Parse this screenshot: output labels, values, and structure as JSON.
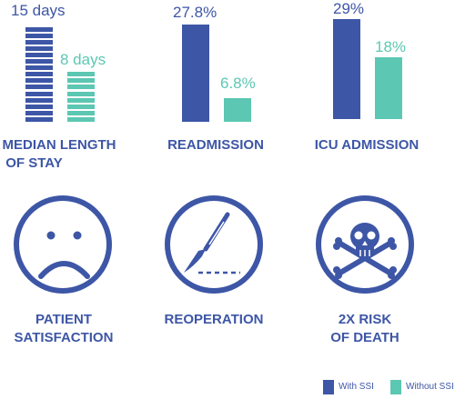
{
  "colors": {
    "with_ssi": "#3d56a6",
    "without_ssi": "#5cc7b2"
  },
  "chart_data": [
    {
      "type": "bar",
      "title": "MEDIAN LENGTH OF STAY",
      "series": [
        {
          "name": "With SSI",
          "values": [
            15
          ],
          "label": "15 days"
        },
        {
          "name": "Without SSI",
          "values": [
            8
          ],
          "label": "8 days"
        }
      ],
      "unit": "days"
    },
    {
      "type": "bar",
      "title": "READMISSION",
      "series": [
        {
          "name": "With SSI",
          "values": [
            27.8
          ],
          "label": "27.8%"
        },
        {
          "name": "Without SSI",
          "values": [
            6.8
          ],
          "label": "6.8%"
        }
      ],
      "unit": "%"
    },
    {
      "type": "bar",
      "title": "ICU ADMISSION",
      "series": [
        {
          "name": "With SSI",
          "values": [
            29
          ],
          "label": "29%"
        },
        {
          "name": "Without SSI",
          "values": [
            18
          ],
          "label": "18%"
        }
      ],
      "unit": "%"
    }
  ],
  "labels": {
    "los_line1": "MEDIAN LENGTH",
    "los_line2": "OF STAY",
    "readmission": "READMISSION",
    "icu": "ICU ADMISSION",
    "satisfaction_line1": "PATIENT",
    "satisfaction_line2": "SATISFACTION",
    "reoperation": "REOPERATION",
    "death_line1": "2X RISK",
    "death_line2": "OF DEATH"
  },
  "icons": {
    "satisfaction": "sad-face-icon",
    "reoperation": "scalpel-icon",
    "death": "skull-crossbones-icon"
  },
  "legend": {
    "with_ssi": "With SSI",
    "without_ssi": "Without SSI"
  }
}
